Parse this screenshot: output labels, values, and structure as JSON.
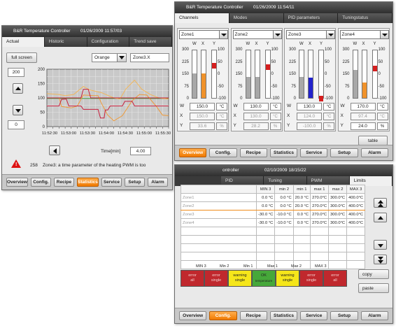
{
  "win1": {
    "title": "B&R Temperature Controller",
    "timestamp": "01/26/2009 11:57/03",
    "tabs": [
      "Actual",
      "Historic",
      "Configuration",
      "Trend save"
    ],
    "fullscreen_label": "full screen",
    "color_select": "Orange",
    "zone_select": "Zone3.X",
    "y_top": "200",
    "y_bottom": "0",
    "y_ticks": [
      "200",
      "150",
      "100",
      "50",
      "0"
    ],
    "x_ticks": [
      "11:52:30",
      "11:53:00",
      "11:53:30",
      "11:54:00",
      "11:54:30",
      "11:55:00",
      "11:55:30"
    ],
    "time_label": "Time[min]",
    "time_value": "4.00",
    "alarm_number": "258",
    "alarm_text": "Zone3: a time parameter of the heating PWM is too",
    "nav": [
      "Overview",
      "Config.",
      "Recipe",
      "Statistics",
      "Service",
      "Setup",
      "Alarm"
    ],
    "nav_active": 3,
    "series_colors": [
      "#ee9a3a",
      "#c81e3c",
      "#3a9a3a",
      "#f2b65a"
    ]
  },
  "win2": {
    "title": "B&R Temperature Controller",
    "timestamp": "01/26/2009 11:54/11",
    "tabs": [
      "Channels",
      "Modes",
      "PID parameters",
      "Tuningstatus"
    ],
    "col_labels": {
      "w": "W",
      "x": "X",
      "y": "Y"
    },
    "left_ticks": [
      "300",
      "225",
      "150",
      "75",
      "0"
    ],
    "right_ticks": [
      "100",
      "50",
      "0",
      "-50",
      "-100"
    ],
    "row_labels": {
      "w": "W",
      "x": "X",
      "y": "Y"
    },
    "zones": [
      {
        "name": "Zone1",
        "w": "150.0",
        "w_unit": "°C",
        "x": "150.0",
        "x_unit": "°C",
        "y": "33.6",
        "y_unit": "%",
        "w_level": 0.5,
        "x_level": 0.5,
        "y_level": 0.67,
        "x_color": "#f0922a"
      },
      {
        "name": "Zone2",
        "w": "130.0",
        "w_unit": "°C",
        "x": "130.0",
        "x_unit": "°C",
        "y": "28.2",
        "y_unit": "%",
        "w_level": 0.43,
        "x_level": 0.43,
        "y_level": 0.64,
        "x_color": "#a7a7a7"
      },
      {
        "name": "Zone3",
        "w": "130.0",
        "w_unit": "°C",
        "x": "124.0",
        "x_unit": "°C",
        "y": "-100.0",
        "y_unit": "%",
        "w_level": 0.43,
        "x_level": 0.41,
        "y_level": 0.0,
        "x_color": "#2222cc"
      },
      {
        "name": "Zone4",
        "w": "170.0",
        "w_unit": "°C",
        "x": "97.4",
        "x_unit": "°C",
        "y": "24.0",
        "y_unit": "%",
        "w_level": 0.57,
        "x_level": 0.32,
        "y_level": 0.62,
        "x_color": "#f0922a"
      }
    ],
    "table_label": "table",
    "nav": [
      "Overview",
      "Config.",
      "Recipe",
      "Statistics",
      "Service",
      "Setup",
      "Alarm"
    ],
    "nav_active": 0
  },
  "win3": {
    "title": "ontroller",
    "timestamp": "02/10/2009 18/15/22",
    "tabs": [
      "PID",
      "Tuning",
      "PWM",
      "Limits"
    ],
    "columns": [
      "MIN 3",
      "min 2",
      "min 1",
      "max 1",
      "max 2",
      "MAX 3"
    ],
    "rows": [
      {
        "zone": "Zone1",
        "vals": [
          "0.0 °C",
          "0.0 °C",
          "20.0 °C",
          "270.0°C",
          "300.0°C",
          "400.0°C"
        ]
      },
      {
        "zone": "Zone2",
        "vals": [
          "0.0 °C",
          "0.0 °C",
          "20.0 °C",
          "270.0°C",
          "300.0°C",
          "400.0°C"
        ]
      },
      {
        "zone": "Zone3",
        "vals": [
          "-30.0 °C",
          "-10.0 °C",
          "0.0 °C",
          "270.0°C",
          "300.0°C",
          "400.0°C"
        ]
      },
      {
        "zone": "Zone4",
        "vals": [
          "-30.0 °C",
          "-10.0 °C",
          "0.0 °C",
          "270.0°C",
          "300.0°C",
          "400.0°C"
        ]
      }
    ],
    "band_labels": [
      "MIN 3",
      "Min 2",
      "Min 1",
      "Max 1",
      "Max 2",
      "MAX 3"
    ],
    "bands": [
      {
        "l1": "error",
        "l2": "all",
        "color": "#c0282d"
      },
      {
        "l1": "error",
        "l2": "single",
        "color": "#c0282d"
      },
      {
        "l1": "warning",
        "l2": "single",
        "color": "#f5e61a"
      },
      {
        "l1": "OK",
        "l2": "temperature",
        "color": "#46a83a"
      },
      {
        "l1": "warning",
        "l2": "single",
        "color": "#f5e61a"
      },
      {
        "l1": "error",
        "l2": "single",
        "color": "#c0282d"
      },
      {
        "l1": "error",
        "l2": "all",
        "color": "#c0282d"
      }
    ],
    "copy_label": "copy",
    "paste_label": "paste",
    "nav": [
      "Overview",
      "Config.",
      "Recipe",
      "Statistics",
      "Service",
      "Setup",
      "Alarm"
    ],
    "nav_active": 1
  }
}
